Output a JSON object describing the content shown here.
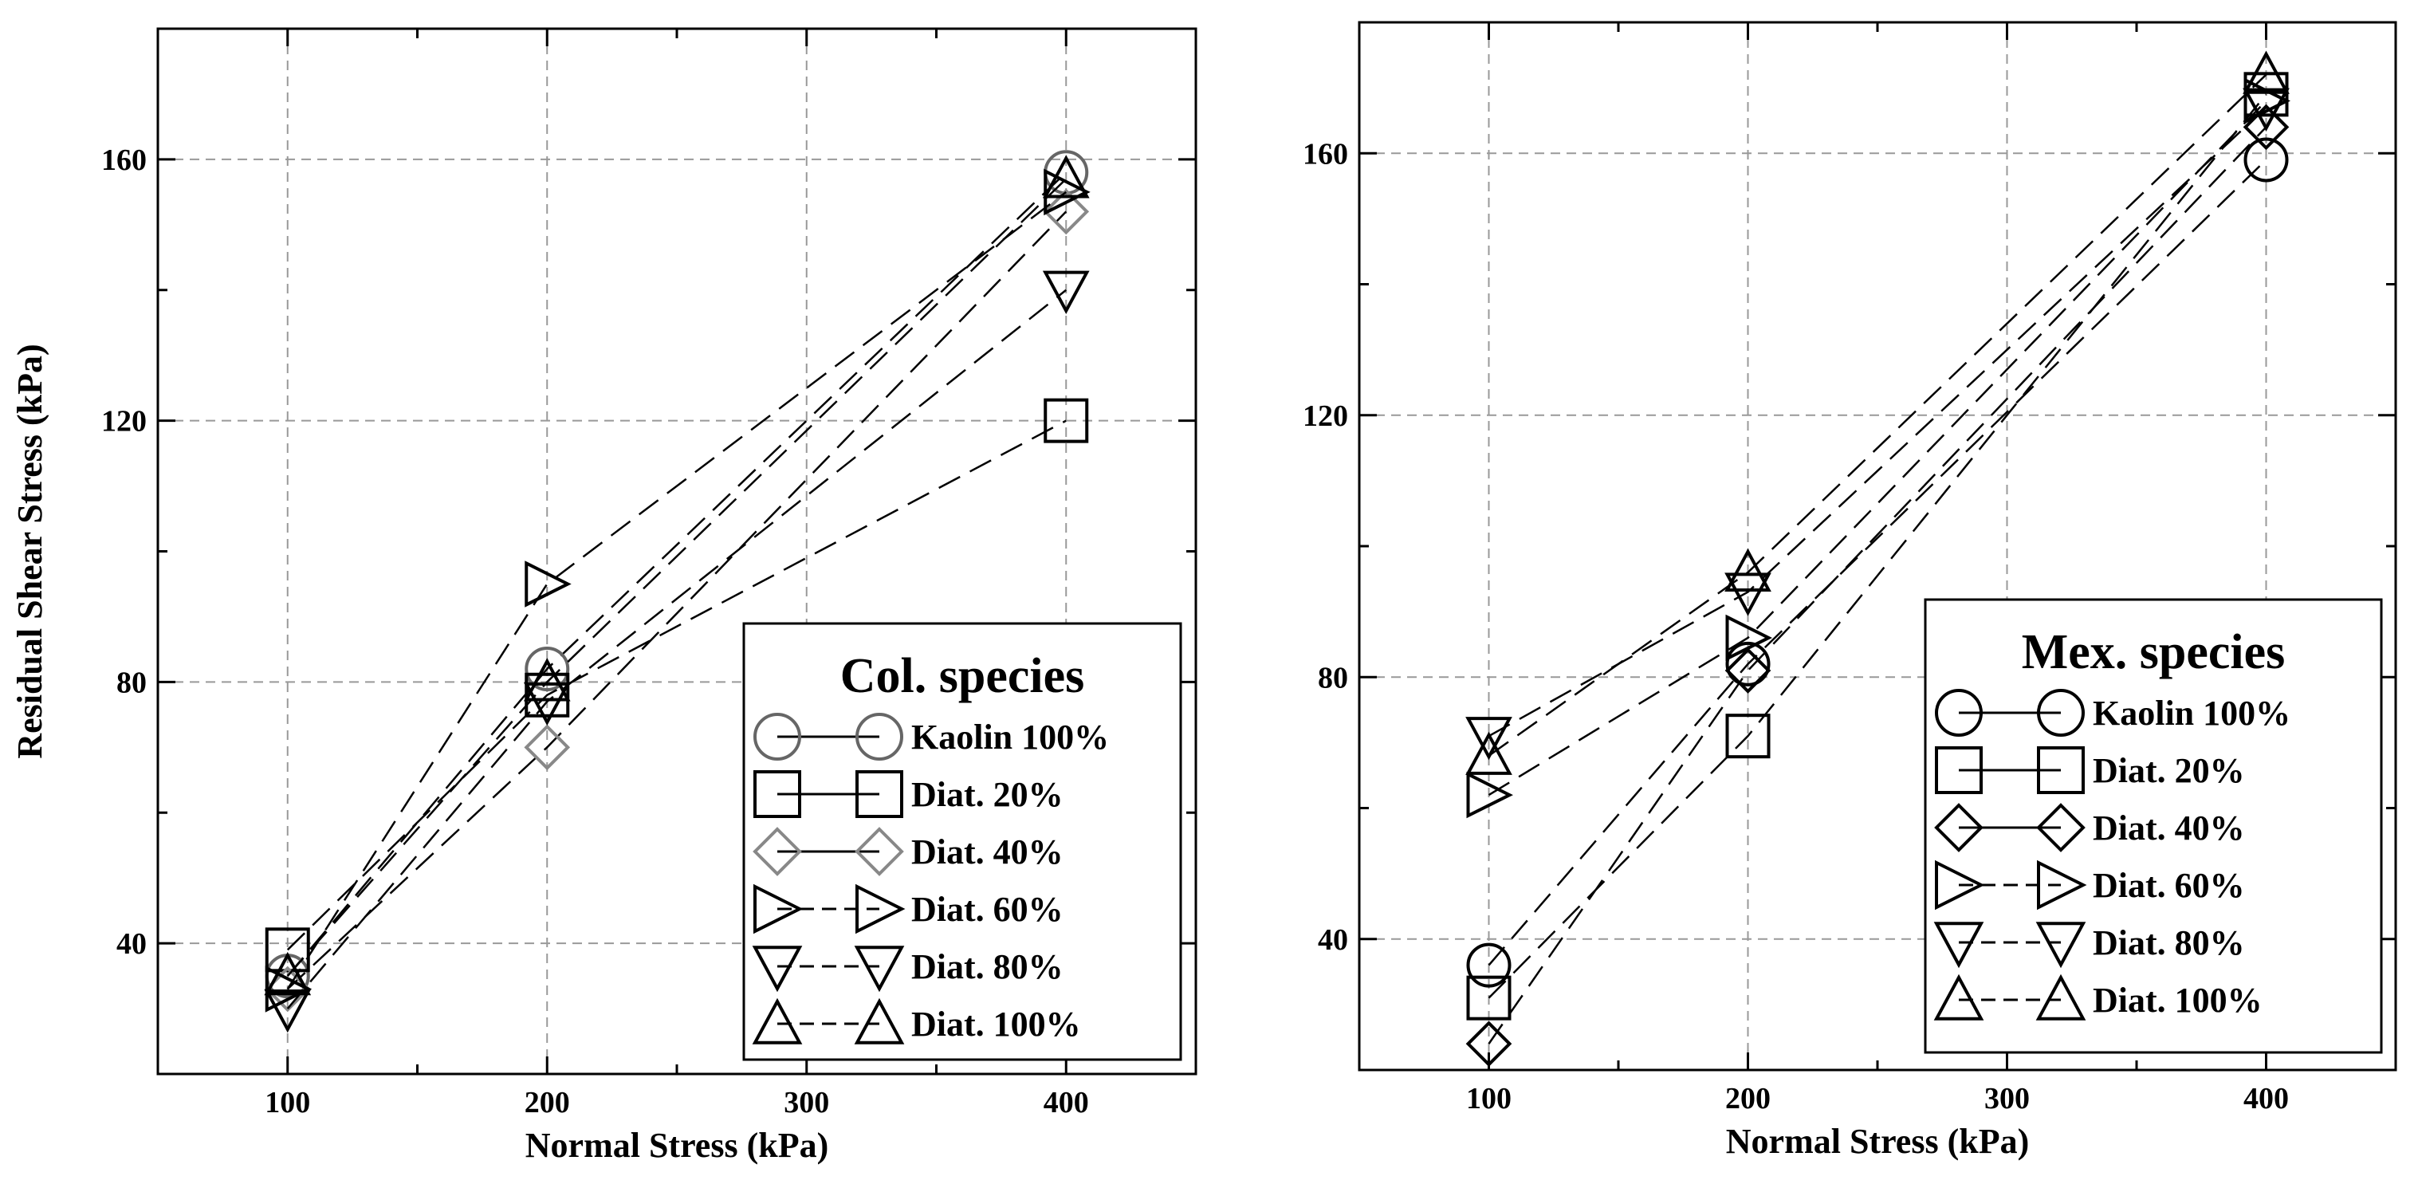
{
  "chart_data": [
    {
      "type": "scatter",
      "id": "left",
      "title": "Col. species",
      "xlabel": "Normal Stress (kPa)",
      "ylabel": "Residual Shear Stress (kPa)",
      "xlim": [
        50,
        450
      ],
      "ylim": [
        20,
        180
      ],
      "xticks": [
        100,
        200,
        300,
        400
      ],
      "yticks": [
        40,
        80,
        120,
        160
      ],
      "grid": true,
      "legend_position": "bottom-right",
      "x": [
        100,
        200,
        400
      ],
      "series": [
        {
          "name": "Kaolin 100%",
          "marker": "circle",
          "line": "solid",
          "color": "#666666",
          "values": [
            35,
            82,
            158
          ]
        },
        {
          "name": "Diat. 20%",
          "marker": "square",
          "line": "solid",
          "color": "#000000",
          "values": [
            39,
            78,
            120
          ]
        },
        {
          "name": "Diat. 40%",
          "marker": "diamond",
          "line": "solid",
          "color": "#888888",
          "values": [
            33,
            70,
            152
          ]
        },
        {
          "name": "Diat. 60%",
          "marker": "triangle-right",
          "line": "dashed",
          "color": "#000000",
          "values": [
            33,
            95,
            155
          ]
        },
        {
          "name": "Diat. 80%",
          "marker": "triangle-down",
          "line": "dashed",
          "color": "#000000",
          "values": [
            30,
            77,
            140
          ]
        },
        {
          "name": "Diat. 100%",
          "marker": "triangle-up",
          "line": "dashed",
          "color": "#000000",
          "values": [
            35,
            80,
            157
          ]
        }
      ]
    },
    {
      "type": "scatter",
      "id": "right",
      "title": "Mex. species",
      "xlabel": "Normal Stress (kPa)",
      "ylabel": "",
      "xlim": [
        50,
        450
      ],
      "ylim": [
        20,
        180
      ],
      "xticks": [
        100,
        200,
        300,
        400
      ],
      "yticks": [
        40,
        80,
        120,
        160
      ],
      "grid": true,
      "legend_position": "bottom-right",
      "x": [
        100,
        200,
        400
      ],
      "series": [
        {
          "name": "Kaolin 100%",
          "marker": "circle",
          "line": "solid",
          "color": "#000000",
          "values": [
            36,
            82,
            159
          ]
        },
        {
          "name": "Diat. 20%",
          "marker": "square",
          "line": "solid",
          "color": "#000000",
          "values": [
            31,
            71,
            169
          ]
        },
        {
          "name": "Diat. 40%",
          "marker": "diamond",
          "line": "solid",
          "color": "#000000",
          "values": [
            24,
            81,
            164
          ]
        },
        {
          "name": "Diat. 60%",
          "marker": "triangle-right",
          "line": "dashed",
          "color": "#000000",
          "values": [
            62,
            86,
            168
          ]
        },
        {
          "name": "Diat. 80%",
          "marker": "triangle-down",
          "line": "dashed",
          "color": "#000000",
          "values": [
            71,
            93,
            167
          ]
        },
        {
          "name": "Diat. 100%",
          "marker": "triangle-up",
          "line": "dashed",
          "color": "#000000",
          "values": [
            68,
            96,
            172
          ]
        }
      ]
    }
  ]
}
